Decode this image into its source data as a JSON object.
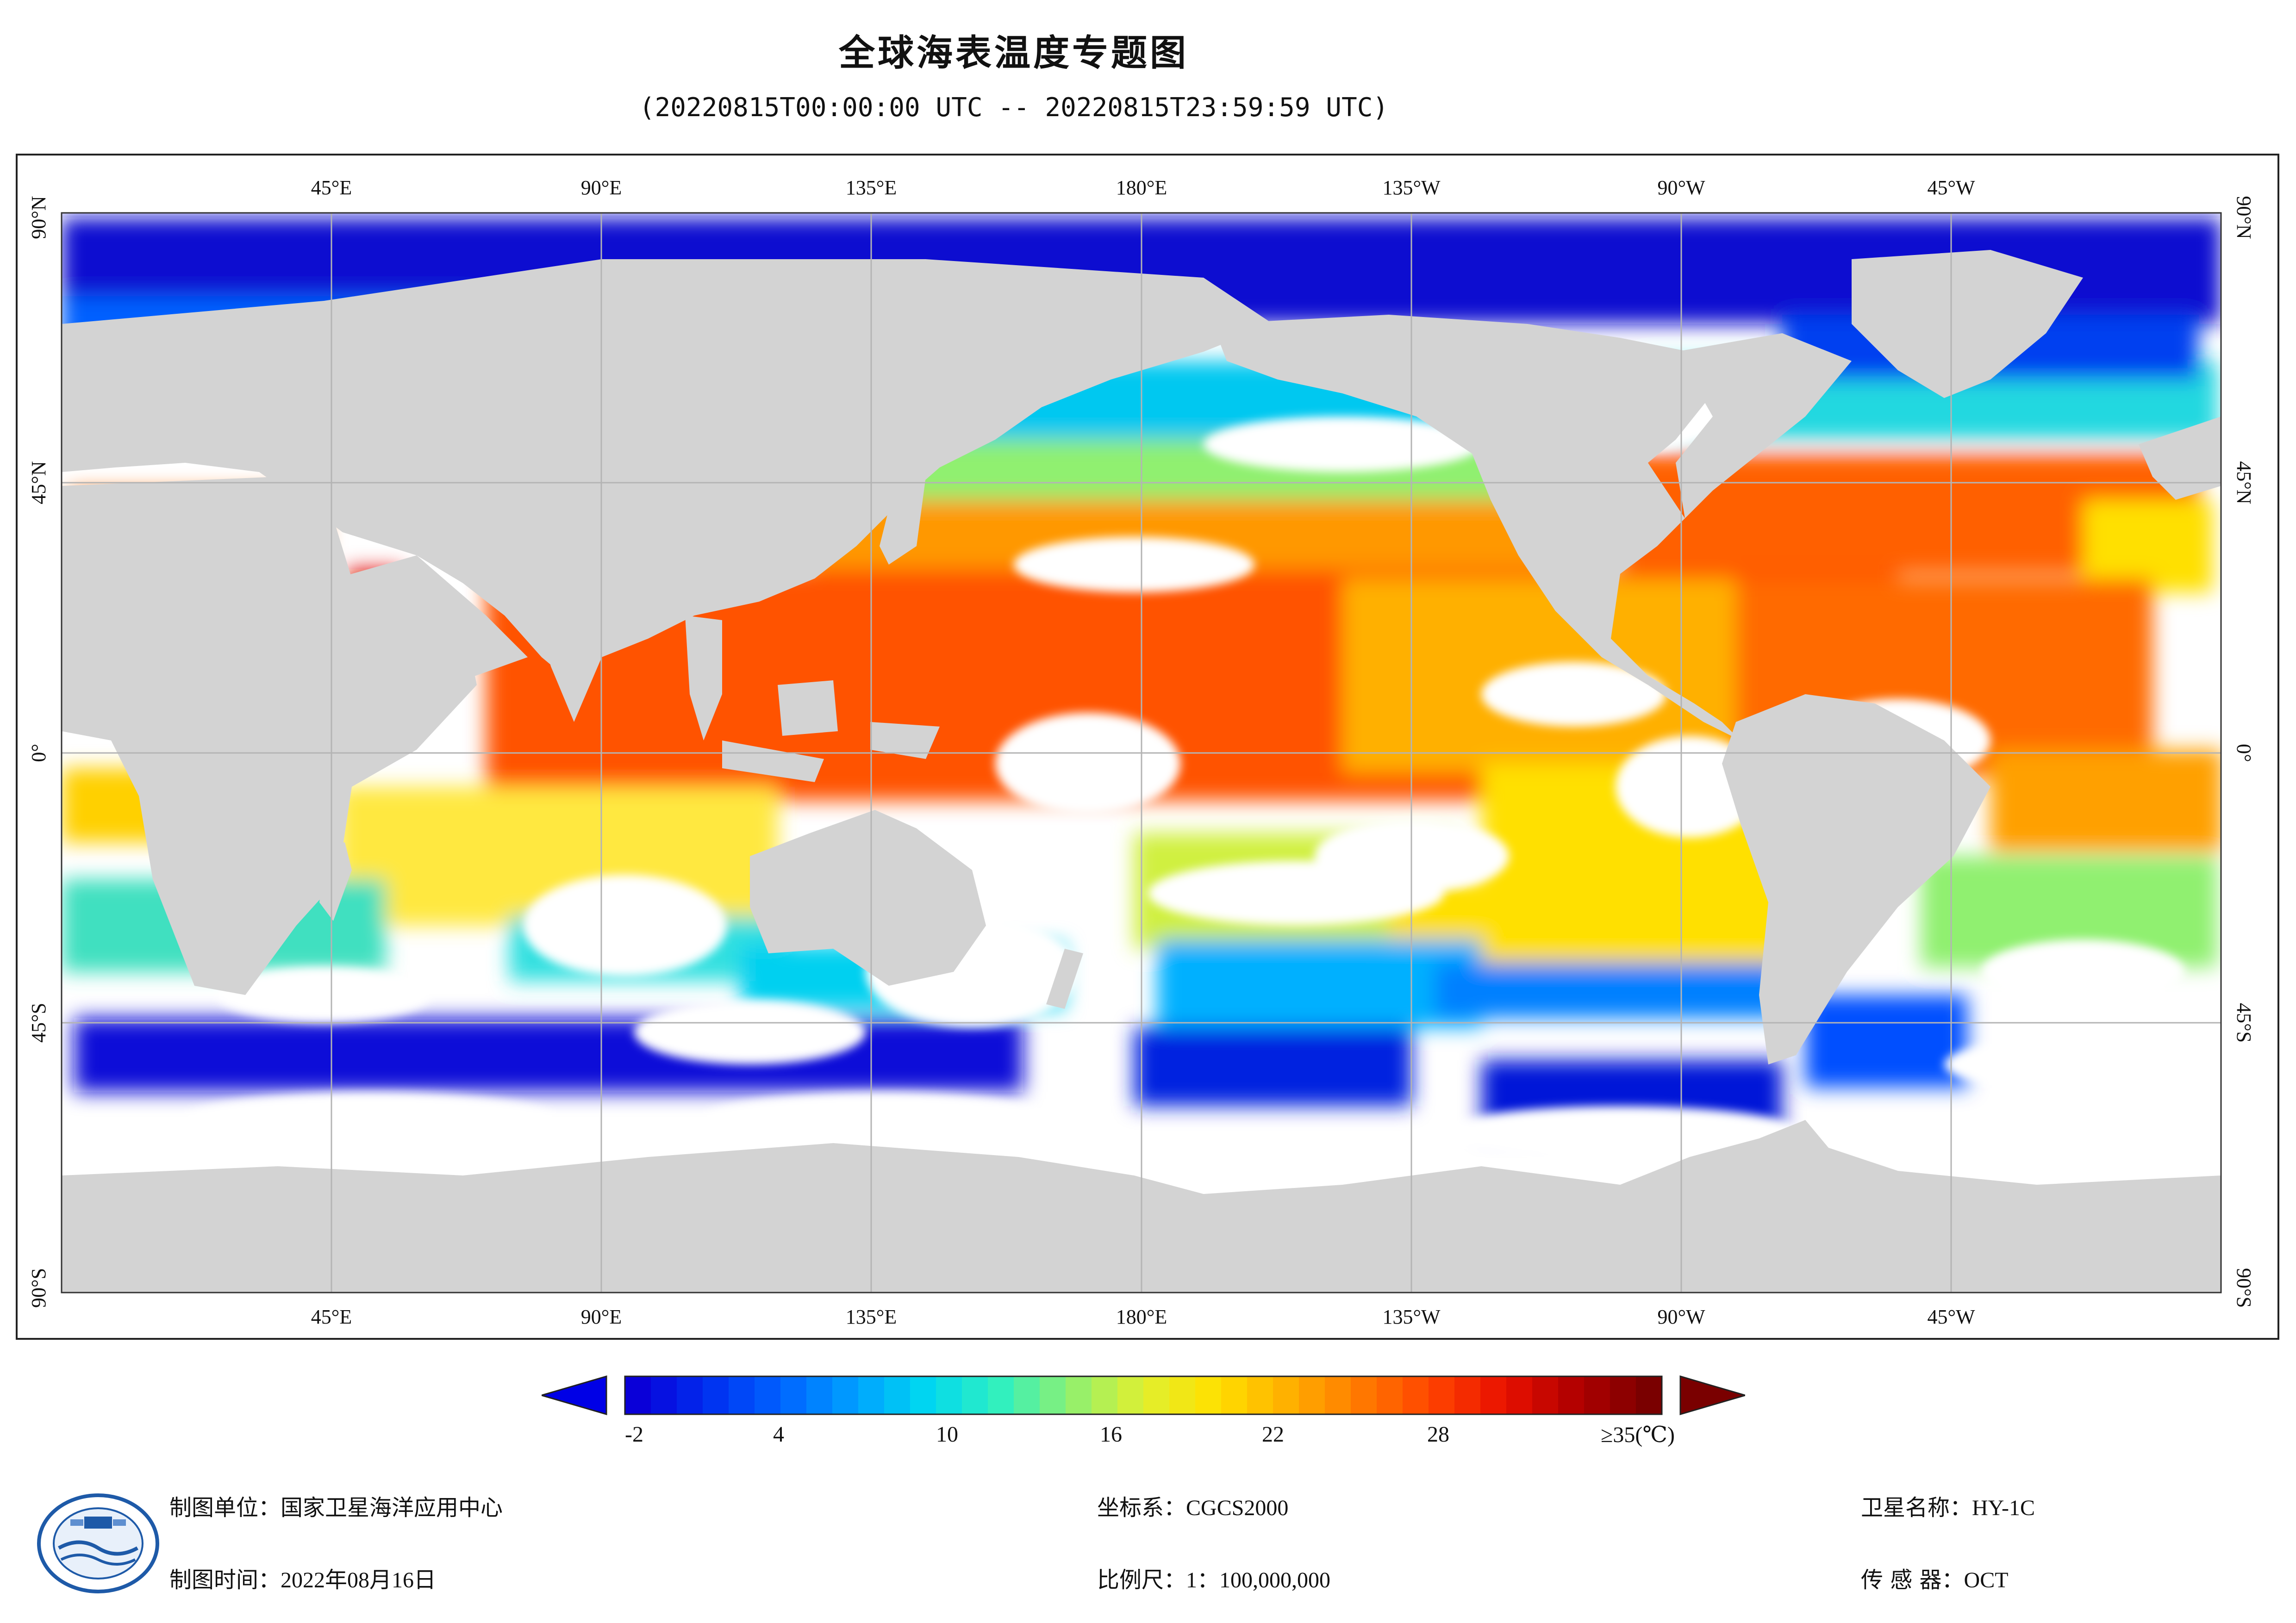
{
  "header": {
    "title": "全球海表温度专题图",
    "subtitle": "(20220815T00:00:00 UTC -- 20220815T23:59:59 UTC)"
  },
  "map": {
    "lon_labels": [
      "45°E",
      "90°E",
      "135°E",
      "180°E",
      "135°W",
      "90°W",
      "45°W"
    ],
    "lat_labels": [
      "90°N",
      "45°N",
      "0°",
      "45°S",
      "90°S"
    ],
    "ocean_no_data_color": "#ffffff",
    "land_color": "#d3d3d3",
    "grid_color": "#b4b4b4"
  },
  "colorbar": {
    "tick_labels": [
      "-2",
      "4",
      "10",
      "16",
      "22",
      "28",
      "≥35(℃)"
    ],
    "low_arrow_color": "#0000e6",
    "high_arrow_color": "#7a0000",
    "colors": [
      "#0a00d8",
      "#0030f0",
      "#0064ff",
      "#00a0ff",
      "#00d8f0",
      "#30f0c0",
      "#90f070",
      "#e0f030",
      "#ffe000",
      "#ffb000",
      "#ff7a00",
      "#ff4400",
      "#e81000",
      "#b00000",
      "#7a0000"
    ]
  },
  "footer": {
    "producer_label": "制图单位：",
    "producer_value": "国家卫星海洋应用中心",
    "time_label": "制图时间：",
    "time_value": "2022年08月16日",
    "crs_label": "坐标系：",
    "crs_value": "CGCS2000",
    "scale_label": "比例尺：",
    "scale_value": "1：100,000,000",
    "satellite_label": "卫星名称：",
    "satellite_value": "HY-1C",
    "sensor_label": "传 感 器：",
    "sensor_value": "OCT"
  }
}
